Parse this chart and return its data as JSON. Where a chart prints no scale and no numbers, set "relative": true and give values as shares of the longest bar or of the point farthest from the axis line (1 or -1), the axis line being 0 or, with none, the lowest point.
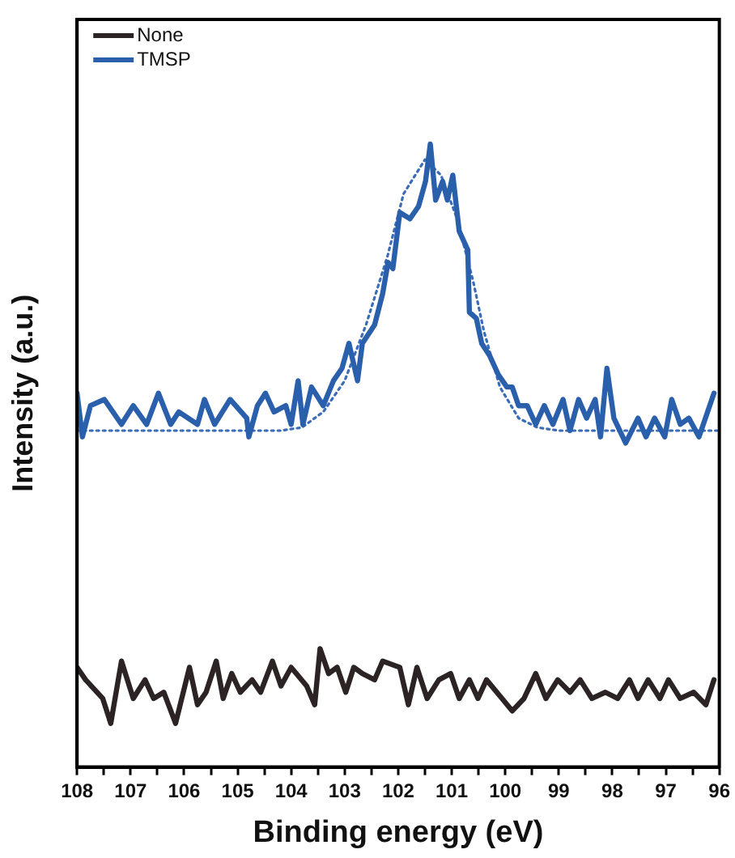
{
  "chart_data": {
    "type": "line",
    "xlabel": "Binding energy (eV)",
    "ylabel": "Intensity (a.u.)",
    "relative": true,
    "xlim": [
      108,
      96
    ],
    "xticks": [
      108,
      {
        "value": 107.5,
        "label": null
      },
      107,
      {
        "value": 106.5,
        "label": null
      },
      106,
      {
        "value": 105.5,
        "label": null
      },
      105,
      {
        "value": 104.5,
        "label": null
      },
      104,
      {
        "value": 103.5,
        "label": null
      },
      103,
      {
        "value": 102.5,
        "label": null
      },
      102,
      {
        "value": 101.5,
        "label": null
      },
      101,
      {
        "value": 100.5,
        "label": null
      },
      100,
      {
        "value": 99.5,
        "label": null
      },
      99,
      {
        "value": 98.5,
        "label": null
      },
      98,
      {
        "value": 97.5,
        "label": null
      },
      97,
      {
        "value": 96.5,
        "label": null
      },
      96
    ],
    "grid": false,
    "legend": "top left",
    "marker": "none",
    "line_style": "solid",
    "series": [
      {
        "name": "None",
        "color": "#2b2324",
        "x": [
          108.0,
          107.84,
          107.52,
          107.37,
          107.17,
          106.95,
          106.73,
          106.57,
          106.38,
          106.16,
          105.9,
          105.75,
          105.59,
          105.4,
          105.27,
          105.11,
          104.95,
          104.73,
          104.57,
          104.35,
          104.19,
          104.0,
          103.71,
          103.56,
          103.46,
          103.3,
          103.14,
          102.98,
          102.83,
          102.67,
          102.44,
          102.29,
          101.97,
          101.81,
          101.65,
          101.46,
          101.24,
          101.02,
          100.86,
          100.67,
          100.51,
          100.35,
          100.06,
          99.87,
          99.65,
          99.43,
          99.24,
          99.02,
          98.79,
          98.6,
          98.38,
          98.13,
          97.9,
          97.68,
          97.52,
          97.33,
          97.11,
          96.95,
          96.73,
          96.48,
          96.25,
          96.1
        ],
        "values": [
          0.16,
          0.14,
          0.11,
          0.07,
          0.17,
          0.11,
          0.14,
          0.11,
          0.12,
          0.07,
          0.16,
          0.1,
          0.12,
          0.17,
          0.11,
          0.15,
          0.12,
          0.14,
          0.12,
          0.17,
          0.13,
          0.16,
          0.13,
          0.1,
          0.19,
          0.15,
          0.16,
          0.12,
          0.16,
          0.15,
          0.14,
          0.17,
          0.16,
          0.1,
          0.16,
          0.11,
          0.14,
          0.15,
          0.11,
          0.14,
          0.11,
          0.14,
          0.11,
          0.09,
          0.11,
          0.15,
          0.11,
          0.14,
          0.12,
          0.14,
          0.11,
          0.12,
          0.11,
          0.14,
          0.11,
          0.14,
          0.11,
          0.14,
          0.11,
          0.12,
          0.1,
          0.14
        ]
      },
      {
        "name": "TMSP",
        "color": "#2a5fac",
        "x": [
          108.0,
          107.9,
          107.75,
          107.49,
          107.17,
          106.95,
          106.7,
          106.48,
          106.25,
          106.1,
          105.75,
          105.62,
          105.43,
          105.14,
          104.83,
          104.79,
          104.63,
          104.48,
          104.32,
          104.1,
          104.0,
          103.87,
          103.78,
          103.62,
          103.4,
          103.21,
          103.05,
          102.92,
          102.76,
          102.67,
          102.44,
          102.29,
          102.19,
          102.1,
          101.97,
          101.78,
          101.62,
          101.49,
          101.4,
          101.3,
          101.17,
          101.08,
          100.98,
          100.86,
          100.7,
          100.67,
          100.54,
          100.44,
          100.29,
          100.13,
          99.97,
          99.87,
          99.75,
          99.59,
          99.43,
          99.27,
          99.11,
          98.92,
          98.79,
          98.63,
          98.48,
          98.32,
          98.22,
          98.1,
          97.97,
          97.75,
          97.52,
          97.37,
          97.21,
          97.02,
          96.89,
          96.73,
          96.57,
          96.38,
          96.1
        ],
        "values": [
          0.6,
          0.53,
          0.58,
          0.59,
          0.55,
          0.58,
          0.55,
          0.6,
          0.55,
          0.57,
          0.55,
          0.59,
          0.55,
          0.59,
          0.56,
          0.53,
          0.58,
          0.6,
          0.57,
          0.58,
          0.55,
          0.62,
          0.55,
          0.61,
          0.58,
          0.62,
          0.64,
          0.68,
          0.62,
          0.68,
          0.71,
          0.76,
          0.81,
          0.8,
          0.89,
          0.88,
          0.9,
          0.94,
          1,
          0.91,
          0.94,
          0.91,
          0.95,
          0.86,
          0.83,
          0.73,
          0.72,
          0.68,
          0.66,
          0.63,
          0.61,
          0.61,
          0.58,
          0.58,
          0.55,
          0.58,
          0.55,
          0.59,
          0.54,
          0.59,
          0.56,
          0.59,
          0.53,
          0.64,
          0.56,
          0.52,
          0.56,
          0.53,
          0.56,
          0.53,
          0.59,
          0.55,
          0.56,
          0.53,
          0.6
        ]
      },
      {
        "color": "#3a6cb8",
        "line_style": "dotted",
        "x": [
          108,
          106,
          104.2,
          103.8,
          103.4,
          103.0,
          102.6,
          102.2,
          101.9,
          101.5,
          101.2,
          100.9,
          100.6,
          100.4,
          100.1,
          99.75,
          99.4,
          99,
          98,
          97,
          96
        ],
        "values": [
          0.54,
          0.54,
          0.54,
          0.545,
          0.57,
          0.62,
          0.71,
          0.82,
          0.92,
          0.975,
          0.95,
          0.88,
          0.78,
          0.7,
          0.61,
          0.56,
          0.545,
          0.54,
          0.54,
          0.54,
          0.54
        ]
      }
    ]
  }
}
